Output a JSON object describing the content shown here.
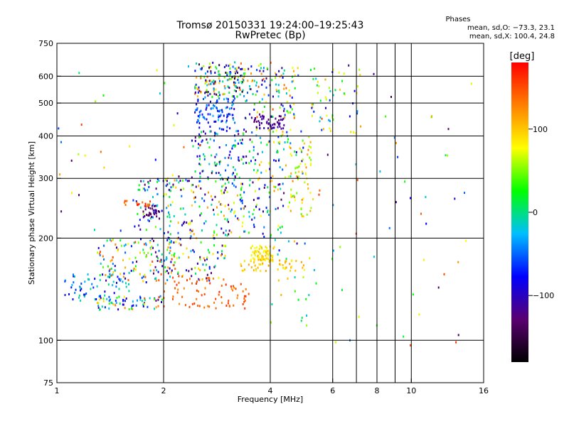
{
  "chart_data": {
    "type": "scatter",
    "title": "Tromsø 20150331 19:24:00–19:25:43",
    "subtitle": "RwPretec (Bp)",
    "xlabel": "Frequency [MHz]",
    "ylabel": "Stationary phase Virtual Height [km]",
    "x_scale": "log",
    "y_scale": "log",
    "xlim": [
      1,
      16
    ],
    "ylim": [
      75,
      750
    ],
    "x_ticks": [
      1,
      2,
      4,
      6,
      8,
      10,
      16
    ],
    "x_tick_labels": [
      "1",
      "2",
      "4",
      "6",
      "8",
      "10",
      "16"
    ],
    "x_gridlines": [
      2,
      4,
      6,
      7,
      8,
      9,
      10
    ],
    "y_ticks": [
      75,
      100,
      200,
      300,
      400,
      500,
      600,
      750
    ],
    "y_tick_labels": [
      "75",
      "100",
      "200",
      "300",
      "400",
      "500",
      "600",
      "750"
    ],
    "y_gridlines": [
      100,
      200,
      300,
      400,
      500,
      600
    ],
    "grid": true,
    "phase_stats": {
      "heading": "Phases",
      "line_o": "mean, sd,O: −73.3, 23.1",
      "line_x": "mean, sd,X: 100.4, 24.8"
    },
    "colorbar": {
      "label": "[deg]",
      "range": [
        -180,
        180
      ],
      "ticks": [
        100,
        0,
        -100
      ],
      "tick_labels": [
        "100",
        "0",
        "−100"
      ],
      "colors": [
        "#000000",
        "#5a0070",
        "#0000ff",
        "#00bfff",
        "#00ff00",
        "#ffff00",
        "#ff8000",
        "#ff0000"
      ]
    },
    "clusters": [
      {
        "f": [
          2.45,
          3.4
        ],
        "h": [
          520,
          660
        ],
        "phase": [
          -170,
          150
        ],
        "n": 170
      },
      {
        "f": [
          3.4,
          4.8
        ],
        "h": [
          450,
          660
        ],
        "phase": [
          -140,
          150
        ],
        "n": 110
      },
      {
        "f": [
          2.45,
          3.2
        ],
        "h": [
          420,
          520
        ],
        "phase": [
          -100,
          -20
        ],
        "n": 90
      },
      {
        "f": [
          3.6,
          4.4
        ],
        "h": [
          420,
          460
        ],
        "phase": [
          -130,
          -100
        ],
        "n": 55
      },
      {
        "f": [
          2.4,
          3.6
        ],
        "h": [
          300,
          420
        ],
        "phase": [
          -140,
          40
        ],
        "n": 120
      },
      {
        "f": [
          3.6,
          5.0
        ],
        "h": [
          300,
          420
        ],
        "phase": [
          -110,
          130
        ],
        "n": 70
      },
      {
        "f": [
          4.5,
          5.3
        ],
        "h": [
          230,
          400
        ],
        "phase": [
          40,
          130
        ],
        "n": 60
      },
      {
        "f": [
          2.0,
          3.4
        ],
        "h": [
          200,
          300
        ],
        "phase": [
          -150,
          120
        ],
        "n": 150
      },
      {
        "f": [
          3.2,
          4.4
        ],
        "h": [
          200,
          300
        ],
        "phase": [
          -140,
          120
        ],
        "n": 70
      },
      {
        "f": [
          1.65,
          2.1
        ],
        "h": [
          170,
          300
        ],
        "phase": [
          -130,
          60
        ],
        "n": 80
      },
      {
        "f": [
          1.75,
          1.95
        ],
        "h": [
          230,
          250
        ],
        "phase": [
          -140,
          -110
        ],
        "n": 30
      },
      {
        "f": [
          1.55,
          1.85
        ],
        "h": [
          248,
          258
        ],
        "phase": [
          130,
          170
        ],
        "n": 18
      },
      {
        "f": [
          1.3,
          2.2
        ],
        "h": [
          148,
          200
        ],
        "phase": [
          -140,
          160
        ],
        "n": 110
      },
      {
        "f": [
          2.0,
          3.0
        ],
        "h": [
          150,
          200
        ],
        "phase": [
          -150,
          130
        ],
        "n": 80
      },
      {
        "f": [
          3.5,
          4.1
        ],
        "h": [
          170,
          190
        ],
        "phase": [
          70,
          110
        ],
        "n": 75
      },
      {
        "f": [
          3.3,
          5.0
        ],
        "h": [
          160,
          172
        ],
        "phase": [
          80,
          120
        ],
        "n": 45
      },
      {
        "f": [
          1.05,
          1.6
        ],
        "h": [
          130,
          160
        ],
        "phase": [
          -90,
          0
        ],
        "n": 70
      },
      {
        "f": [
          1.3,
          2.0
        ],
        "h": [
          123,
          135
        ],
        "phase": [
          -130,
          150
        ],
        "n": 60
      },
      {
        "f": [
          1.9,
          3.5
        ],
        "h": [
          124,
          155
        ],
        "phase": [
          120,
          165
        ],
        "n": 85
      },
      {
        "f": [
          5.2,
          7.2
        ],
        "h": [
          400,
          640
        ],
        "phase": [
          -90,
          120
        ],
        "n": 55
      },
      {
        "f": [
          4.0,
          5.3
        ],
        "h": [
          110,
          200
        ],
        "phase": [
          -120,
          120
        ],
        "n": 25
      },
      {
        "f": [
          5.3,
          15.0
        ],
        "h": [
          92,
          700
        ],
        "phase": [
          -150,
          160
        ],
        "n": 55
      },
      {
        "f": [
          1.0,
          2.6
        ],
        "h": [
          200,
          700
        ],
        "phase": [
          -150,
          160
        ],
        "n": 35
      }
    ]
  }
}
